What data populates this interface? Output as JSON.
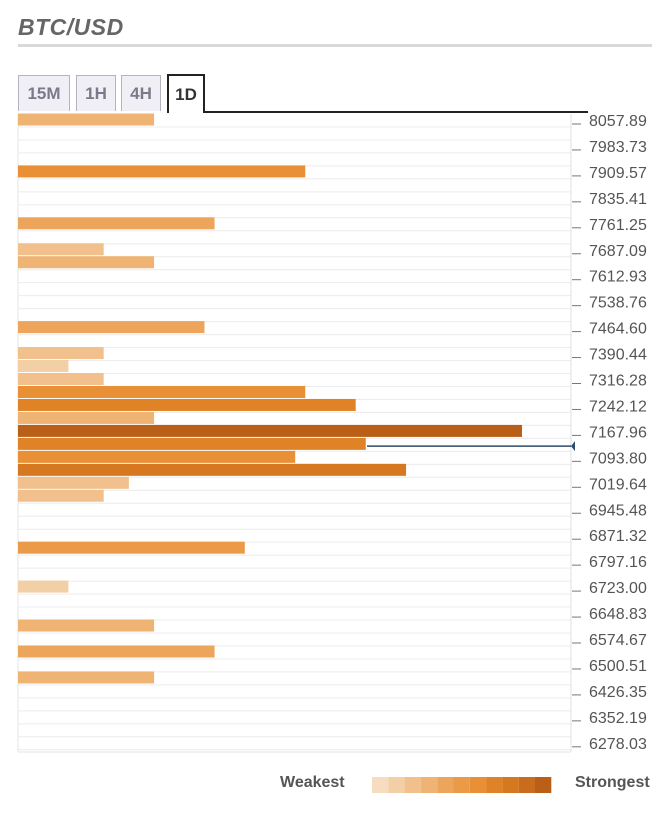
{
  "header": {
    "title": "BTC/USD"
  },
  "tabs": [
    {
      "label": "15M",
      "active": false
    },
    {
      "label": "1H",
      "active": false
    },
    {
      "label": "4H",
      "active": false
    },
    {
      "label": "1D",
      "active": true
    }
  ],
  "legend": {
    "weak_label": "Weakest",
    "strong_label": "Strongest",
    "colors": [
      "#f6dcc0",
      "#f3cfa5",
      "#f1c08c",
      "#efb373",
      "#eda55b",
      "#eb9a47",
      "#e98f35",
      "#e08226",
      "#d5781f",
      "#c96d1c",
      "#b95f18"
    ]
  },
  "chart_data": {
    "type": "bar",
    "orientation": "horizontal",
    "title": "BTC/USD",
    "timeframe": "1D",
    "value_scale": [
      0,
      10
    ],
    "y_ticks": [
      "8057.89",
      "7983.73",
      "7909.57",
      "7835.41",
      "7761.25",
      "7687.09",
      "7612.93",
      "7538.76",
      "7464.60",
      "7390.44",
      "7316.28",
      "7242.12",
      "7167.96",
      "7093.80",
      "7019.64",
      "6945.48",
      "6871.32",
      "6797.16",
      "6723.00",
      "6648.83",
      "6574.67",
      "6500.51",
      "6426.35",
      "6352.19",
      "6278.03"
    ],
    "ylim": [
      6258,
      8070
    ],
    "current_price": 7126,
    "bars": [
      {
        "price": 8057.89,
        "strength": 2.7
      },
      {
        "price": 7909.57,
        "strength": 5.7
      },
      {
        "price": 7761.25,
        "strength": 3.9
      },
      {
        "price": 7687.09,
        "strength": 1.7
      },
      {
        "price": 7650.01,
        "strength": 2.7
      },
      {
        "price": 7464.6,
        "strength": 3.7
      },
      {
        "price": 7390.44,
        "strength": 1.7
      },
      {
        "price": 7353.36,
        "strength": 1.0
      },
      {
        "price": 7316.28,
        "strength": 1.7
      },
      {
        "price": 7279.2,
        "strength": 5.7
      },
      {
        "price": 7242.12,
        "strength": 6.7
      },
      {
        "price": 7205.04,
        "strength": 2.7
      },
      {
        "price": 7167.96,
        "strength": 10.0
      },
      {
        "price": 7130.88,
        "strength": 6.9
      },
      {
        "price": 7093.8,
        "strength": 5.5
      },
      {
        "price": 7056.72,
        "strength": 7.7
      },
      {
        "price": 7019.64,
        "strength": 2.2
      },
      {
        "price": 6982.56,
        "strength": 1.7
      },
      {
        "price": 6834.24,
        "strength": 4.5
      },
      {
        "price": 6723.0,
        "strength": 1.0
      },
      {
        "price": 6611.75,
        "strength": 2.7
      },
      {
        "price": 6537.59,
        "strength": 3.9
      },
      {
        "price": 6463.43,
        "strength": 2.7
      }
    ]
  }
}
